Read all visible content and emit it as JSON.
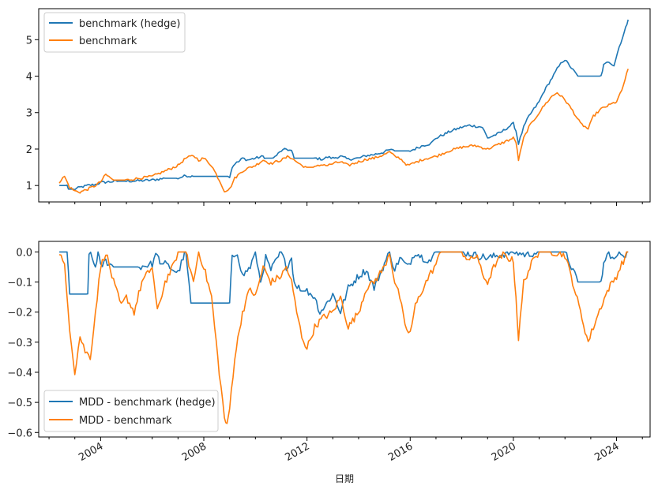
{
  "chart_data": [
    {
      "type": "line",
      "title": "",
      "xlabel": "",
      "ylabel": "",
      "xlim": [
        2001.6,
        2025.3
      ],
      "ylim": [
        0.55,
        5.85
      ],
      "yticks": [
        1,
        2,
        3,
        4,
        5
      ],
      "ytick_labels": [
        "1",
        "2",
        "3",
        "4",
        "5"
      ],
      "grid": false,
      "legend_position": "upper-left",
      "colors": {
        "hedge": "#1f77b4",
        "bench": "#ff7f0e"
      },
      "series": [
        {
          "name": "benchmark (hedge)",
          "color": "#1f77b4",
          "x": [
            2002.4,
            2002.7,
            2002.75,
            2003.0,
            2003.2,
            2003.5,
            2003.8,
            2004.0,
            2004.3,
            2004.7,
            2005.0,
            2005.5,
            2006.0,
            2006.5,
            2007.0,
            2007.3,
            2007.6,
            2008.0,
            2008.5,
            2009.0,
            2009.1,
            2009.2,
            2009.35,
            2009.5,
            2009.7,
            2010.0,
            2010.3,
            2010.4,
            2010.7,
            2011.0,
            2011.2,
            2011.4,
            2011.5,
            2011.8,
            2012.0,
            2012.3,
            2012.6,
            2012.8,
            2013.0,
            2013.3,
            2013.6,
            2014.0,
            2014.3,
            2014.6,
            2015.0,
            2015.2,
            2015.4,
            2015.6,
            2016.0,
            2016.5,
            2016.8,
            2017.0,
            2017.3,
            2017.6,
            2018.0,
            2018.3,
            2018.6,
            2018.8,
            2019.0,
            2019.5,
            2019.8,
            2020.0,
            2020.1,
            2020.2,
            2020.4,
            2020.6,
            2020.8,
            2021.0,
            2021.2,
            2021.5,
            2021.7,
            2021.9,
            2022.0,
            2022.5,
            2023.0,
            2023.4,
            2023.5,
            2023.7,
            2023.9,
            2024.1,
            2024.3,
            2024.45
          ],
          "y": [
            1.0,
            1.0,
            0.9,
            0.9,
            0.95,
            1.0,
            1.03,
            1.08,
            1.1,
            1.12,
            1.12,
            1.13,
            1.15,
            1.2,
            1.2,
            1.27,
            1.25,
            1.25,
            1.25,
            1.25,
            1.5,
            1.6,
            1.65,
            1.75,
            1.7,
            1.75,
            1.8,
            1.75,
            1.75,
            1.95,
            2.0,
            1.95,
            1.75,
            1.75,
            1.75,
            1.75,
            1.72,
            1.78,
            1.75,
            1.8,
            1.72,
            1.75,
            1.82,
            1.85,
            1.92,
            1.98,
            1.95,
            1.95,
            1.95,
            2.1,
            2.15,
            2.3,
            2.4,
            2.5,
            2.6,
            2.65,
            2.62,
            2.6,
            2.3,
            2.45,
            2.6,
            2.7,
            2.5,
            2.15,
            2.6,
            2.9,
            3.1,
            3.3,
            3.6,
            3.95,
            4.2,
            4.4,
            4.45,
            4.0,
            4.0,
            4.0,
            4.3,
            4.4,
            4.3,
            4.8,
            5.2,
            5.55
          ]
        },
        {
          "name": "benchmark",
          "color": "#ff7f0e",
          "x": [
            2002.4,
            2002.6,
            2002.8,
            2003.0,
            2003.2,
            2003.5,
            2003.8,
            2004.0,
            2004.2,
            2004.5,
            2005.0,
            2005.5,
            2006.0,
            2006.5,
            2007.0,
            2007.3,
            2007.6,
            2007.8,
            2008.0,
            2008.3,
            2008.6,
            2008.8,
            2009.0,
            2009.2,
            2009.5,
            2009.8,
            2010.0,
            2010.3,
            2010.6,
            2011.0,
            2011.3,
            2011.6,
            2011.8,
            2012.0,
            2012.3,
            2012.6,
            2012.8,
            2013.0,
            2013.3,
            2013.6,
            2014.0,
            2014.3,
            2014.6,
            2015.0,
            2015.2,
            2015.4,
            2015.6,
            2015.9,
            2016.1,
            2016.5,
            2017.0,
            2017.5,
            2018.0,
            2018.5,
            2019.0,
            2019.5,
            2020.0,
            2020.1,
            2020.2,
            2020.4,
            2020.6,
            2020.8,
            2021.0,
            2021.2,
            2021.5,
            2021.7,
            2022.0,
            2022.3,
            2022.6,
            2022.9,
            2023.1,
            2023.4,
            2023.7,
            2024.0,
            2024.2,
            2024.45
          ],
          "y": [
            1.1,
            1.25,
            0.95,
            0.85,
            0.82,
            0.9,
            1.0,
            1.1,
            1.3,
            1.15,
            1.15,
            1.2,
            1.25,
            1.4,
            1.55,
            1.75,
            1.82,
            1.7,
            1.75,
            1.55,
            1.15,
            0.85,
            0.9,
            1.2,
            1.4,
            1.5,
            1.55,
            1.7,
            1.6,
            1.7,
            1.8,
            1.65,
            1.55,
            1.5,
            1.5,
            1.58,
            1.55,
            1.6,
            1.65,
            1.55,
            1.65,
            1.72,
            1.75,
            1.85,
            1.92,
            1.8,
            1.75,
            1.55,
            1.6,
            1.72,
            1.8,
            1.95,
            2.05,
            2.1,
            2.0,
            2.15,
            2.3,
            2.2,
            1.7,
            2.3,
            2.6,
            2.8,
            3.0,
            3.2,
            3.45,
            3.55,
            3.35,
            3.05,
            2.7,
            2.55,
            2.9,
            3.1,
            3.2,
            3.3,
            3.6,
            4.2
          ]
        }
      ]
    },
    {
      "type": "line",
      "title": "",
      "xlabel": "日期",
      "ylabel": "",
      "xlim": [
        2001.6,
        2025.3
      ],
      "ylim": [
        -0.615,
        0.035
      ],
      "yticks": [
        0.0,
        -0.1,
        -0.2,
        -0.3,
        -0.4,
        -0.5,
        -0.6
      ],
      "ytick_labels": [
        "0.0",
        "−0.1",
        "−0.2",
        "−0.3",
        "−0.4",
        "−0.5",
        "−0.6"
      ],
      "xticks": [
        2004,
        2008,
        2012,
        2016,
        2020,
        2024
      ],
      "xtick_labels": [
        "2004",
        "2008",
        "2012",
        "2016",
        "2020",
        "2024"
      ],
      "grid": false,
      "legend_position": "lower-left",
      "series": [
        {
          "name": "MDD - benchmark (hedge)",
          "color": "#1f77b4",
          "x": [
            2002.4,
            2002.7,
            2002.8,
            2003.5,
            2003.55,
            2003.8,
            2003.9,
            2004.0,
            2004.2,
            2004.5,
            2005.0,
            2005.5,
            2006.0,
            2006.2,
            2006.3,
            2006.5,
            2007.0,
            2007.2,
            2007.3,
            2007.5,
            2008.0,
            2008.5,
            2009.0,
            2009.1,
            2009.3,
            2009.5,
            2009.8,
            2010.0,
            2010.2,
            2010.4,
            2010.6,
            2011.0,
            2011.2,
            2011.4,
            2011.5,
            2011.8,
            2012.0,
            2012.3,
            2012.5,
            2012.7,
            2013.0,
            2013.3,
            2013.6,
            2014.0,
            2014.3,
            2014.6,
            2015.0,
            2015.2,
            2015.4,
            2015.6,
            2015.9,
            2016.2,
            2016.5,
            2016.8,
            2017.0,
            2017.5,
            2018.0,
            2019.0,
            2020.0,
            2020.5,
            2021.0,
            2022.0,
            2022.5,
            2023.0,
            2023.4,
            2023.5,
            2023.7,
            2023.9,
            2024.1,
            2024.3,
            2024.45
          ],
          "y": [
            0.0,
            -0.0,
            -0.14,
            -0.14,
            -0.0,
            -0.05,
            0.0,
            -0.05,
            -0.03,
            -0.05,
            -0.05,
            -0.05,
            -0.04,
            0.0,
            -0.04,
            -0.04,
            -0.07,
            -0.02,
            0.0,
            -0.17,
            -0.17,
            -0.17,
            -0.17,
            -0.02,
            0.0,
            -0.08,
            -0.05,
            0.0,
            -0.1,
            -0.02,
            -0.06,
            0.0,
            -0.05,
            -0.02,
            -0.1,
            -0.13,
            -0.13,
            -0.15,
            -0.2,
            -0.18,
            -0.14,
            -0.2,
            -0.12,
            -0.08,
            -0.06,
            -0.12,
            -0.04,
            0.0,
            -0.06,
            -0.02,
            -0.05,
            0.0,
            -0.02,
            -0.03,
            0.0,
            0.0,
            0.0,
            -0.02,
            0.0,
            -0.01,
            0.0,
            0.0,
            -0.1,
            -0.1,
            -0.1,
            -0.04,
            0.0,
            -0.03,
            0.0,
            -0.01,
            0.0
          ]
        },
        {
          "name": "MDD - benchmark",
          "color": "#ff7f0e",
          "x": [
            2002.4,
            2002.6,
            2002.8,
            2003.0,
            2003.2,
            2003.4,
            2003.6,
            2003.8,
            2004.0,
            2004.2,
            2004.5,
            2004.8,
            2005.0,
            2005.3,
            2005.6,
            2006.0,
            2006.2,
            2006.5,
            2006.8,
            2007.0,
            2007.3,
            2007.6,
            2007.8,
            2008.0,
            2008.3,
            2008.6,
            2008.8,
            2008.9,
            2009.0,
            2009.2,
            2009.5,
            2009.8,
            2010.0,
            2010.3,
            2010.6,
            2011.0,
            2011.2,
            2011.4,
            2011.6,
            2011.8,
            2012.0,
            2012.3,
            2012.6,
            2013.0,
            2013.3,
            2013.6,
            2014.0,
            2014.3,
            2014.6,
            2015.0,
            2015.2,
            2015.4,
            2015.6,
            2015.8,
            2016.0,
            2016.2,
            2016.5,
            2016.8,
            2017.0,
            2017.2,
            2017.5,
            2018.0,
            2018.3,
            2018.6,
            2018.8,
            2019.0,
            2019.3,
            2019.6,
            2020.0,
            2020.1,
            2020.2,
            2020.4,
            2020.7,
            2021.0,
            2021.5,
            2022.0,
            2022.3,
            2022.6,
            2022.9,
            2023.1,
            2023.4,
            2023.7,
            2024.0,
            2024.2,
            2024.45
          ],
          "y": [
            0.0,
            -0.05,
            -0.25,
            -0.4,
            -0.28,
            -0.33,
            -0.35,
            -0.2,
            -0.05,
            0.0,
            -0.1,
            -0.18,
            -0.15,
            -0.2,
            -0.1,
            -0.05,
            -0.2,
            -0.1,
            -0.05,
            0.0,
            0.0,
            -0.1,
            0.0,
            -0.05,
            -0.15,
            -0.4,
            -0.55,
            -0.58,
            -0.52,
            -0.35,
            -0.2,
            -0.12,
            -0.15,
            -0.05,
            -0.1,
            -0.08,
            -0.05,
            -0.1,
            -0.2,
            -0.28,
            -0.32,
            -0.25,
            -0.22,
            -0.2,
            -0.15,
            -0.25,
            -0.2,
            -0.12,
            -0.1,
            -0.05,
            0.0,
            -0.1,
            -0.15,
            -0.25,
            -0.27,
            -0.18,
            -0.12,
            -0.07,
            -0.04,
            0.0,
            0.0,
            0.0,
            -0.03,
            -0.01,
            -0.08,
            -0.1,
            -0.04,
            -0.01,
            -0.03,
            -0.15,
            -0.29,
            -0.1,
            -0.04,
            0.0,
            0.0,
            -0.01,
            -0.1,
            -0.2,
            -0.3,
            -0.25,
            -0.18,
            -0.12,
            -0.08,
            -0.04,
            0.0
          ]
        }
      ]
    }
  ]
}
